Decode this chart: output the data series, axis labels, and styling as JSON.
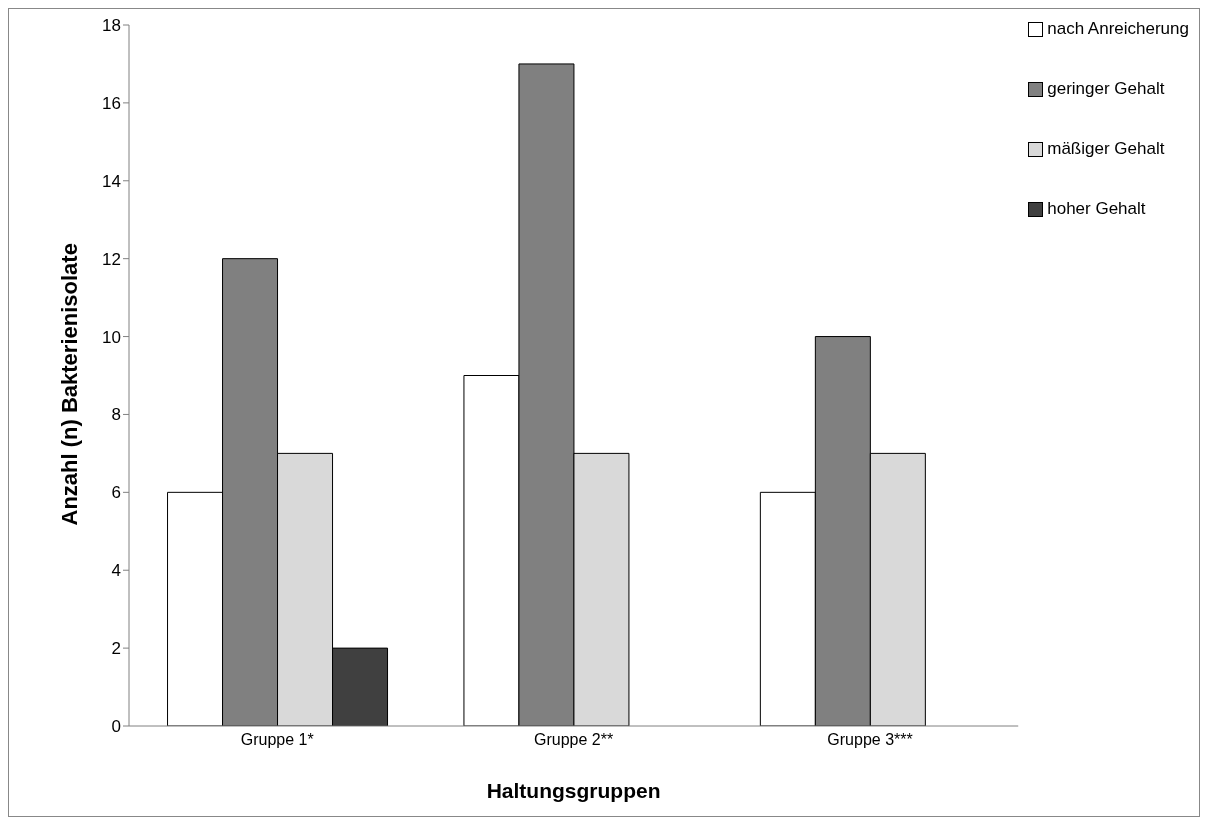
{
  "chart_data": {
    "type": "bar",
    "xlabel": "Haltungsgruppen",
    "ylabel": "Anzahl (n) Bakterienisolate",
    "categories": [
      "Gruppe 1*",
      "Gruppe 2**",
      "Gruppe 3***"
    ],
    "series": [
      {
        "name": "nach Anreicherung",
        "color": "#ffffff",
        "values": [
          6,
          9,
          6
        ]
      },
      {
        "name": "geringer Gehalt",
        "color": "#808080",
        "values": [
          12,
          17,
          10
        ]
      },
      {
        "name": "mäßiger Gehalt",
        "color": "#d9d9d9",
        "values": [
          7,
          7,
          7
        ]
      },
      {
        "name": "hoher Gehalt",
        "color": "#404040",
        "values": [
          2,
          null,
          null
        ]
      }
    ],
    "ylim": [
      0,
      18
    ],
    "yticks": [
      0,
      2,
      4,
      6,
      8,
      10,
      12,
      14,
      16,
      18
    ],
    "grid": false,
    "legend": "top right"
  }
}
